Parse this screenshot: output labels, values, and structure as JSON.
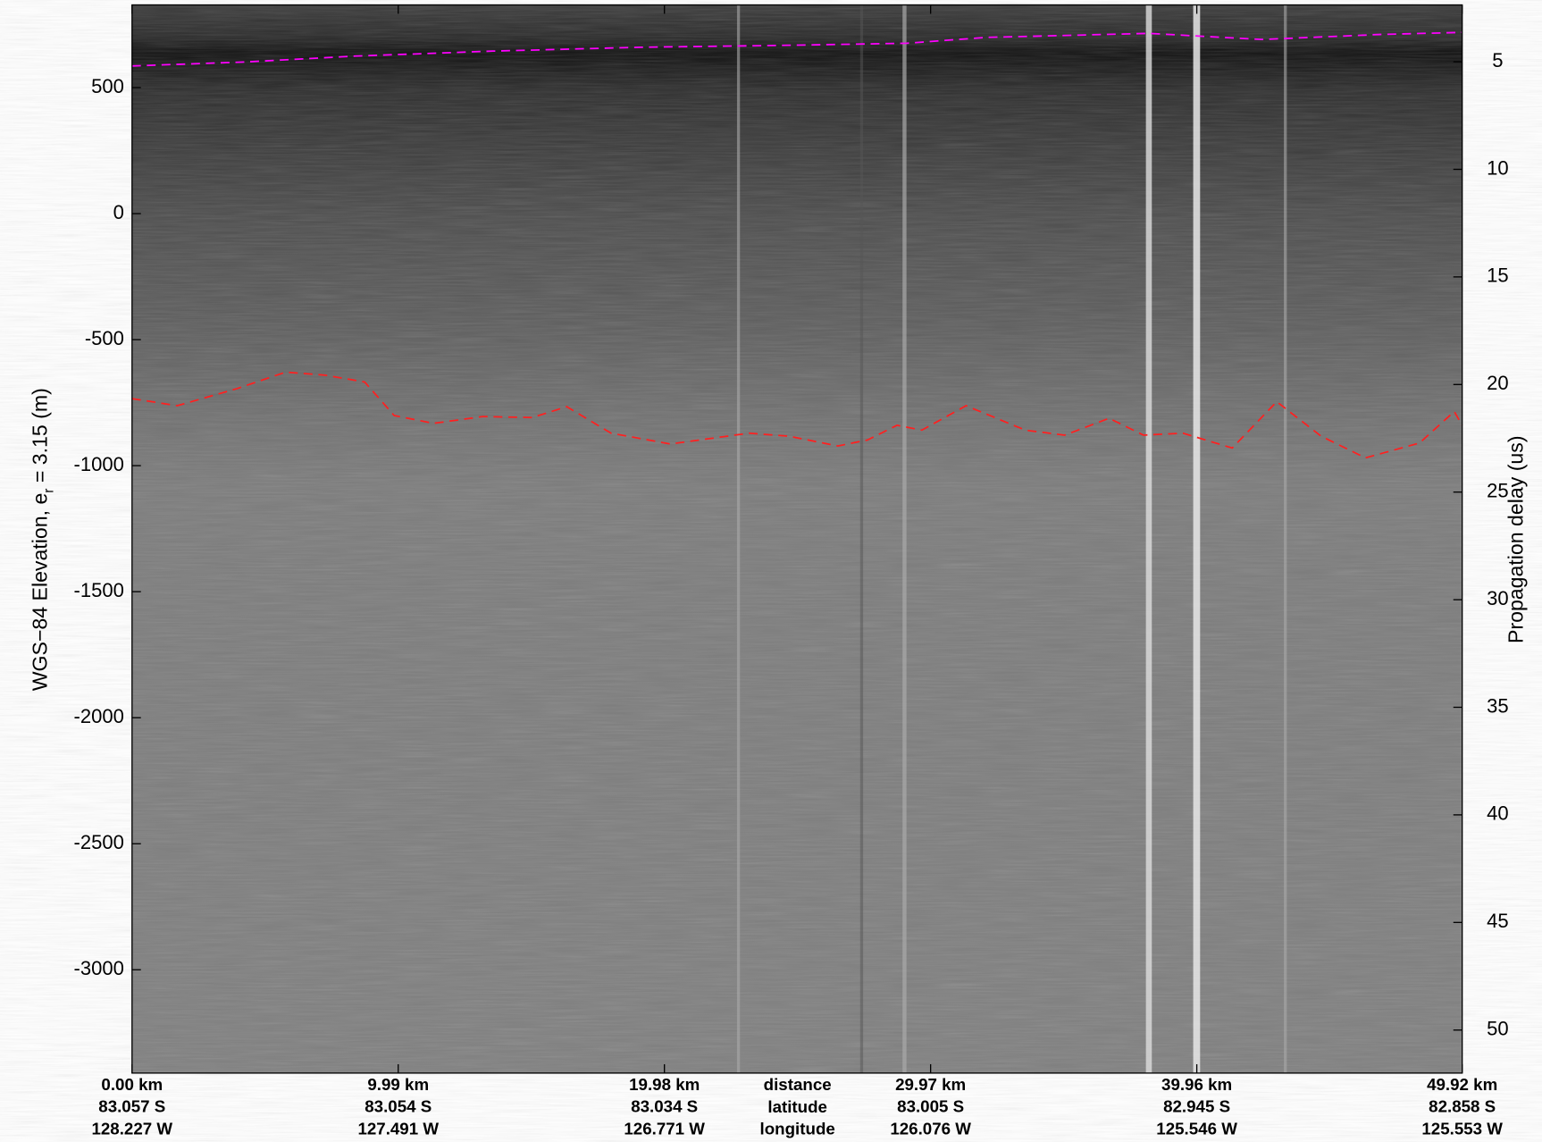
{
  "chart_data": {
    "type": "line",
    "ylabel": [
      "WGS−84 Elevation, e",
      "r",
      " = 3.15 (m)"
    ],
    "y2label": "Propagation delay (us)",
    "xlim": [
      0,
      49.92
    ],
    "ylim": [
      -3410,
      828
    ],
    "y2lim": [
      2.36,
      52
    ],
    "xticks": [
      {
        "value": 0,
        "label": "0.00 km"
      },
      {
        "value": 9.99,
        "label": "9.99 km"
      },
      {
        "value": 19.98,
        "label": "19.98 km"
      },
      {
        "value": 29.97,
        "label": "29.97 km"
      },
      {
        "value": 39.96,
        "label": "39.96 km"
      },
      {
        "value": 49.92,
        "label": "49.92 km"
      }
    ],
    "xtick_latitudes": [
      "83.057 S",
      "83.054 S",
      "83.034 S",
      "83.005 S",
      "82.945 S",
      "82.858 S"
    ],
    "xtick_longitudes": [
      "128.227 W",
      "127.491 W",
      "126.771 W",
      "126.076 W",
      "125.546 W",
      "125.553 W"
    ],
    "x_row_titles": [
      "distance",
      "latitude",
      "longitude"
    ],
    "yticks": [
      500,
      0,
      -500,
      -1000,
      -1500,
      -2000,
      -2500,
      -3000
    ],
    "y2ticks": [
      5,
      10,
      15,
      20,
      25,
      30,
      35,
      40,
      45,
      50
    ],
    "series": [
      {
        "color": "#ff00ff",
        "dash": true,
        "x": [
          0,
          4.29,
          8.36,
          13.54,
          19.09,
          24.64,
          29.08,
          32.04,
          38.15,
          42.4,
          46.84,
          49.92
        ],
        "values": [
          586,
          602,
          625,
          645,
          660,
          668,
          676,
          699,
          715,
          691,
          711,
          719
        ]
      },
      {
        "color": "#ff2020",
        "dash": true,
        "x": [
          0,
          1.7,
          3.92,
          5.77,
          7.25,
          8.73,
          9.84,
          11.32,
          13.17,
          15.02,
          16.32,
          17.98,
          20.2,
          23.16,
          24.64,
          26.49,
          27.6,
          28.71,
          29.64,
          31.3,
          33.52,
          35.0,
          36.67,
          37.96,
          39.44,
          41.29,
          42.96,
          44.62,
          46.29,
          48.32,
          49.62,
          49.92
        ],
        "values": [
          -734,
          -762,
          -695,
          -629,
          -641,
          -668,
          -801,
          -832,
          -805,
          -809,
          -766,
          -871,
          -914,
          -871,
          -883,
          -922,
          -898,
          -840,
          -859,
          -762,
          -859,
          -879,
          -812,
          -879,
          -871,
          -930,
          -746,
          -883,
          -969,
          -910,
          -785,
          -840
        ]
      }
    ]
  }
}
